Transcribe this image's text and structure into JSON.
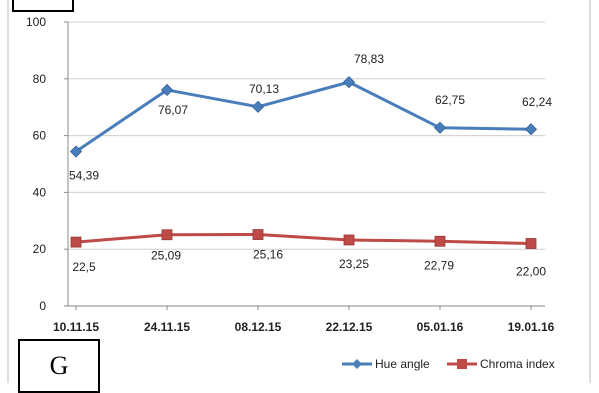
{
  "panel_label": "G",
  "chart_data": {
    "type": "line",
    "title": "",
    "xlabel": "",
    "ylabel": "",
    "categories": [
      "10.11.15",
      "24.11.15",
      "08.12.15",
      "22.12.15",
      "05.01.16",
      "19.01.16"
    ],
    "ylim": [
      0,
      100
    ],
    "yticks": [
      0,
      20,
      40,
      60,
      80,
      100
    ],
    "grid": true,
    "legend_position": "bottom-right",
    "series": [
      {
        "name": "Hue angle",
        "marker": "diamond",
        "color": "#4a7ebb",
        "values": [
          54.39,
          76.07,
          70.13,
          78.83,
          62.75,
          62.24
        ],
        "labels": [
          "54,39",
          "76,07",
          "70,13",
          "78,83",
          "62,75",
          "62,24"
        ]
      },
      {
        "name": "Chroma index",
        "marker": "square",
        "color": "#be4b48",
        "values": [
          22.5,
          25.09,
          25.16,
          23.25,
          22.79,
          22.0
        ],
        "labels": [
          "22,5",
          "25,09",
          "25,16",
          "23,25",
          "22,79",
          "22,00"
        ]
      }
    ]
  }
}
